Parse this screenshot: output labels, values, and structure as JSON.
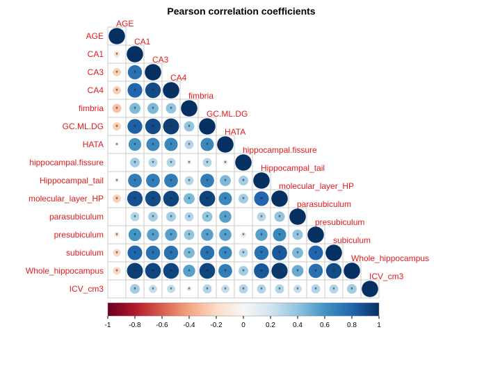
{
  "chart_data": {
    "type": "heatmap",
    "title": "Pearson correlation coefficients",
    "variables": [
      "AGE",
      "CA1",
      "CA3",
      "CA4",
      "fimbria",
      "GC.ML.DG",
      "HATA",
      "hippocampal.fissure",
      "Hippocampal_tail",
      "molecular_layer_HP",
      "parasubiculum",
      "presubiculum",
      "subiculum",
      "Whole_hippocampus",
      "ICV_cm3"
    ],
    "lower_triangle": [
      [
        1
      ],
      [
        -0.15,
        1
      ],
      [
        -0.25,
        0.75,
        1
      ],
      [
        -0.25,
        0.8,
        0.9,
        1
      ],
      [
        -0.3,
        0.45,
        0.45,
        0.4,
        1
      ],
      [
        -0.25,
        0.82,
        0.9,
        0.95,
        0.4,
        1
      ],
      [
        -0.05,
        0.6,
        0.65,
        0.65,
        0.3,
        0.65,
        1
      ],
      [
        0.0,
        0.35,
        0.3,
        0.3,
        0.08,
        0.3,
        0.1,
        1
      ],
      [
        -0.08,
        0.7,
        0.7,
        0.7,
        0.3,
        0.7,
        0.45,
        0.35,
        1
      ],
      [
        -0.25,
        0.88,
        0.9,
        0.92,
        0.45,
        0.93,
        0.65,
        0.35,
        0.8,
        1
      ],
      [
        0.02,
        0.3,
        0.35,
        0.35,
        0.3,
        0.4,
        0.55,
        0.0,
        0.3,
        0.4,
        1
      ],
      [
        -0.12,
        0.6,
        0.55,
        0.55,
        0.4,
        0.55,
        0.55,
        0.12,
        0.55,
        0.65,
        0.4,
        1
      ],
      [
        -0.22,
        0.8,
        0.75,
        0.75,
        0.45,
        0.75,
        0.65,
        0.3,
        0.75,
        0.85,
        0.45,
        0.8,
        1
      ],
      [
        -0.22,
        0.95,
        0.92,
        0.92,
        0.55,
        0.92,
        0.7,
        0.35,
        0.85,
        0.97,
        0.5,
        0.75,
        0.9,
        1
      ],
      [
        0.0,
        0.35,
        0.25,
        0.25,
        0.1,
        0.3,
        0.25,
        0.3,
        0.3,
        0.3,
        0.25,
        0.3,
        0.3,
        0.35,
        1
      ]
    ],
    "significance_marker": "*",
    "significant": [
      [
        1
      ],
      [
        1,
        1
      ],
      [
        1,
        1,
        1
      ],
      [
        1,
        1,
        1,
        1
      ],
      [
        1,
        1,
        1,
        1,
        1
      ],
      [
        1,
        1,
        1,
        1,
        1,
        1
      ],
      [
        1,
        1,
        1,
        1,
        1,
        1,
        1
      ],
      [
        0,
        1,
        1,
        1,
        1,
        1,
        1,
        1
      ],
      [
        1,
        1,
        1,
        1,
        1,
        1,
        1,
        1,
        1
      ],
      [
        1,
        1,
        1,
        1,
        1,
        1,
        1,
        1,
        1,
        1
      ],
      [
        0,
        1,
        1,
        1,
        1,
        1,
        1,
        0,
        1,
        1,
        1
      ],
      [
        1,
        1,
        1,
        1,
        1,
        1,
        1,
        1,
        1,
        1,
        1,
        1
      ],
      [
        1,
        1,
        1,
        1,
        1,
        1,
        1,
        1,
        1,
        1,
        1,
        1,
        1
      ],
      [
        1,
        1,
        1,
        1,
        1,
        1,
        1,
        1,
        1,
        1,
        1,
        1,
        1,
        1
      ],
      [
        0,
        1,
        1,
        1,
        1,
        1,
        1,
        1,
        1,
        1,
        1,
        1,
        1,
        1,
        1
      ]
    ],
    "colorbar": {
      "range": [
        -1,
        1
      ],
      "ticks": [
        "-1",
        "-0.8",
        "-0.6",
        "-0.4",
        "-0.2",
        "0",
        "0.2",
        "0.4",
        "0.6",
        "0.8",
        "1"
      ],
      "placement": "bottom"
    },
    "label_color": "#e41a1c",
    "color_negative": "#67001f",
    "color_zero": "#f7f7f7",
    "color_positive": "#053061"
  }
}
